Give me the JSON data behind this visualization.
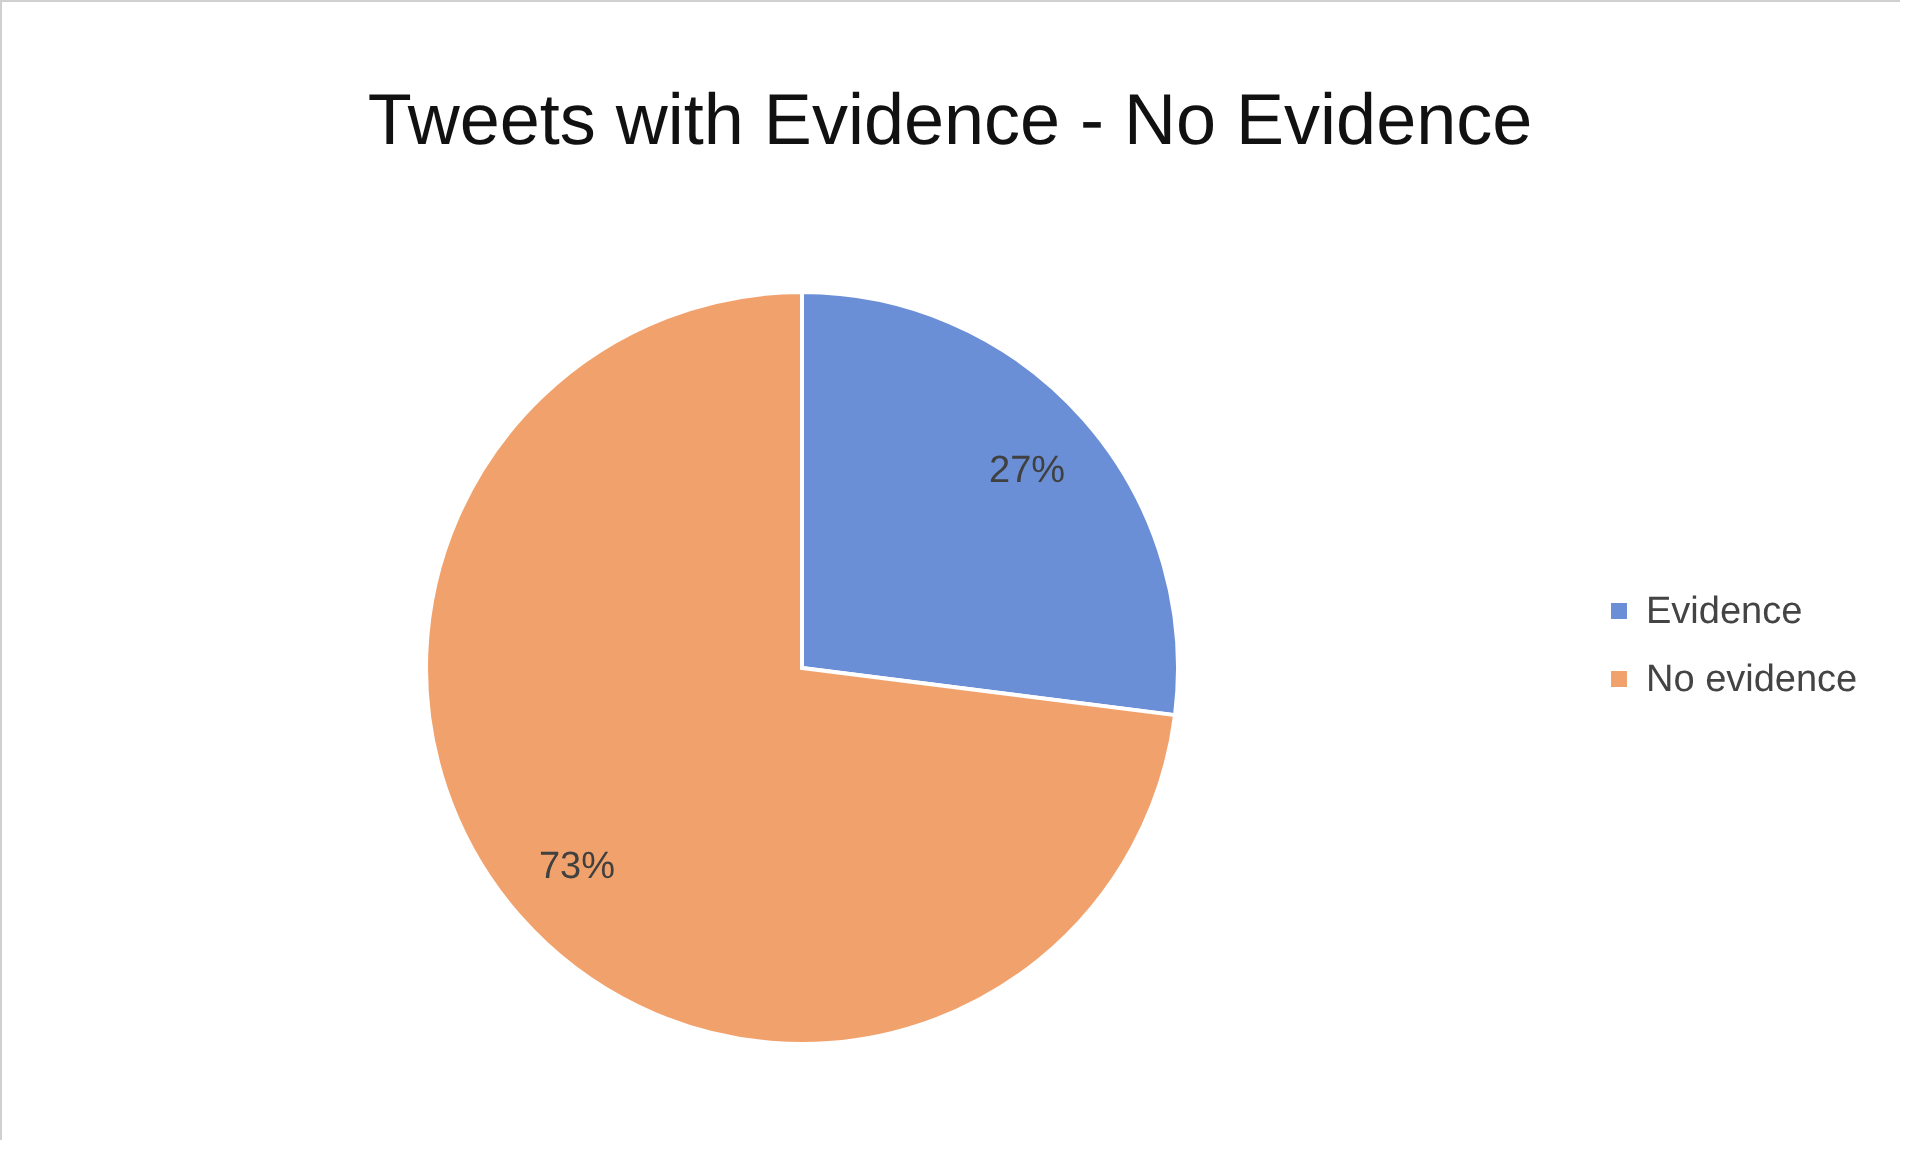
{
  "chart_data": {
    "type": "pie",
    "title": "Tweets with Evidence - No Evidence",
    "categories": [
      "Evidence",
      "No evidence"
    ],
    "values": [
      27,
      73
    ],
    "colors": [
      "#6b8fd6",
      "#f1a26c"
    ],
    "value_labels": [
      "27%",
      "73%"
    ],
    "legend": "right"
  }
}
